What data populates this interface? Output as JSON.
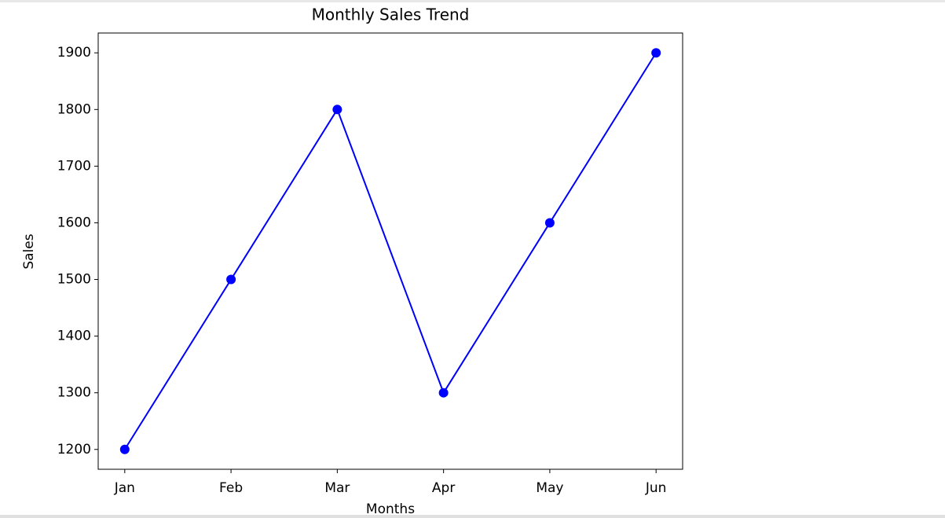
{
  "chart_data": {
    "type": "line",
    "title": "Monthly Sales Trend",
    "x_label": "Months",
    "y_label": "Sales",
    "categories": [
      "Jan",
      "Feb",
      "Mar",
      "Apr",
      "May",
      "Jun"
    ],
    "series": [
      {
        "name": "Sales",
        "color": "#0000ff",
        "values": [
          1200,
          1500,
          1800,
          1300,
          1600,
          1900
        ]
      }
    ],
    "ylim": [
      1165,
      1935
    ],
    "yticks": [
      1200,
      1300,
      1400,
      1500,
      1600,
      1700,
      1800,
      1900
    ],
    "grid": false,
    "markers": true
  }
}
